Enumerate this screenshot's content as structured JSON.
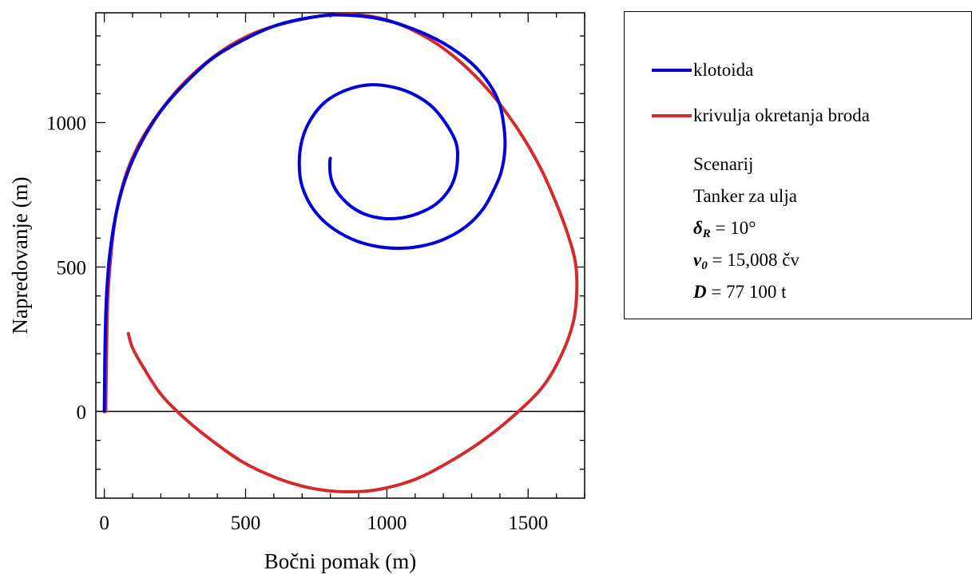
{
  "chart_data": {
    "type": "line",
    "xlabel": "Bočni pomak (m)",
    "ylabel": "Napredovanje (m)",
    "xlim": [
      -30,
      1700
    ],
    "ylim": [
      -300,
      1380
    ],
    "x_ticks": [
      0,
      500,
      1000,
      1500
    ],
    "y_ticks": [
      0,
      500,
      1000
    ],
    "x_tick_labels": [
      "0",
      "500",
      "1000",
      "1500"
    ],
    "y_tick_labels": [
      "0",
      "500",
      "1000"
    ],
    "reference_line_y": 0,
    "legend_position": "right",
    "series": [
      {
        "name": "klotoida",
        "color": "#0000dd",
        "points": [
          [
            0,
            0
          ],
          [
            1,
            100
          ],
          [
            3,
            250
          ],
          [
            8,
            400
          ],
          [
            20,
            550
          ],
          [
            45,
            700
          ],
          [
            80,
            820
          ],
          [
            130,
            930
          ],
          [
            200,
            1040
          ],
          [
            280,
            1130
          ],
          [
            380,
            1220
          ],
          [
            500,
            1290
          ],
          [
            620,
            1340
          ],
          [
            760,
            1368
          ],
          [
            860,
            1372
          ],
          [
            980,
            1358
          ],
          [
            1090,
            1325
          ],
          [
            1200,
            1275
          ],
          [
            1300,
            1205
          ],
          [
            1365,
            1130
          ],
          [
            1400,
            1060
          ],
          [
            1415,
            980
          ],
          [
            1418,
            910
          ],
          [
            1405,
            830
          ],
          [
            1380,
            770
          ],
          [
            1340,
            700
          ],
          [
            1280,
            640
          ],
          [
            1200,
            595
          ],
          [
            1120,
            572
          ],
          [
            1040,
            565
          ],
          [
            960,
            572
          ],
          [
            880,
            595
          ],
          [
            800,
            640
          ],
          [
            740,
            700
          ],
          [
            700,
            780
          ],
          [
            690,
            860
          ],
          [
            700,
            940
          ],
          [
            730,
            1010
          ],
          [
            780,
            1070
          ],
          [
            850,
            1110
          ],
          [
            930,
            1130
          ],
          [
            1010,
            1125
          ],
          [
            1090,
            1100
          ],
          [
            1160,
            1055
          ],
          [
            1210,
            995
          ],
          [
            1245,
            930
          ],
          [
            1250,
            870
          ],
          [
            1240,
            810
          ],
          [
            1215,
            760
          ],
          [
            1170,
            715
          ],
          [
            1110,
            685
          ],
          [
            1050,
            670
          ],
          [
            990,
            668
          ],
          [
            930,
            680
          ],
          [
            880,
            705
          ],
          [
            840,
            740
          ],
          [
            812,
            780
          ],
          [
            800,
            820
          ],
          [
            798,
            860
          ],
          [
            800,
            876
          ]
        ]
      },
      {
        "name": "krivulja okretanja broda",
        "color": "#d42a2a",
        "points": [
          [
            5,
            0
          ],
          [
            8,
            200
          ],
          [
            15,
            440
          ],
          [
            45,
            700
          ],
          [
            110,
            900
          ],
          [
            230,
            1080
          ],
          [
            370,
            1215
          ],
          [
            520,
            1305
          ],
          [
            700,
            1358
          ],
          [
            860,
            1375
          ],
          [
            1000,
            1355
          ],
          [
            1140,
            1295
          ],
          [
            1260,
            1210
          ],
          [
            1370,
            1100
          ],
          [
            1465,
            975
          ],
          [
            1540,
            850
          ],
          [
            1600,
            720
          ],
          [
            1645,
            600
          ],
          [
            1668,
            510
          ],
          [
            1672,
            410
          ],
          [
            1660,
            310
          ],
          [
            1620,
            200
          ],
          [
            1555,
            90
          ],
          [
            1460,
            -5
          ],
          [
            1340,
            -100
          ],
          [
            1220,
            -175
          ],
          [
            1100,
            -235
          ],
          [
            970,
            -270
          ],
          [
            850,
            -278
          ],
          [
            730,
            -265
          ],
          [
            610,
            -230
          ],
          [
            490,
            -175
          ],
          [
            380,
            -100
          ],
          [
            280,
            -20
          ],
          [
            200,
            60
          ],
          [
            140,
            150
          ],
          [
            100,
            220
          ],
          [
            85,
            270
          ]
        ]
      }
    ]
  },
  "legend": {
    "entries": [
      {
        "label": "klotoida",
        "color": "#0000dd"
      },
      {
        "label": "krivulja okretanja broda",
        "color": "#d42a2a"
      }
    ]
  },
  "info": {
    "scenario_label": "Scenarij",
    "vessel": "Tanker za ulja",
    "rudder_symbol": "δ",
    "rudder_subscript": "R",
    "rudder_value": "= 10°",
    "speed_symbol": "v",
    "speed_subscript": "0",
    "speed_value": "= 15,008 čv",
    "displacement_symbol": "D",
    "displacement_value": "= 77 100 t"
  }
}
